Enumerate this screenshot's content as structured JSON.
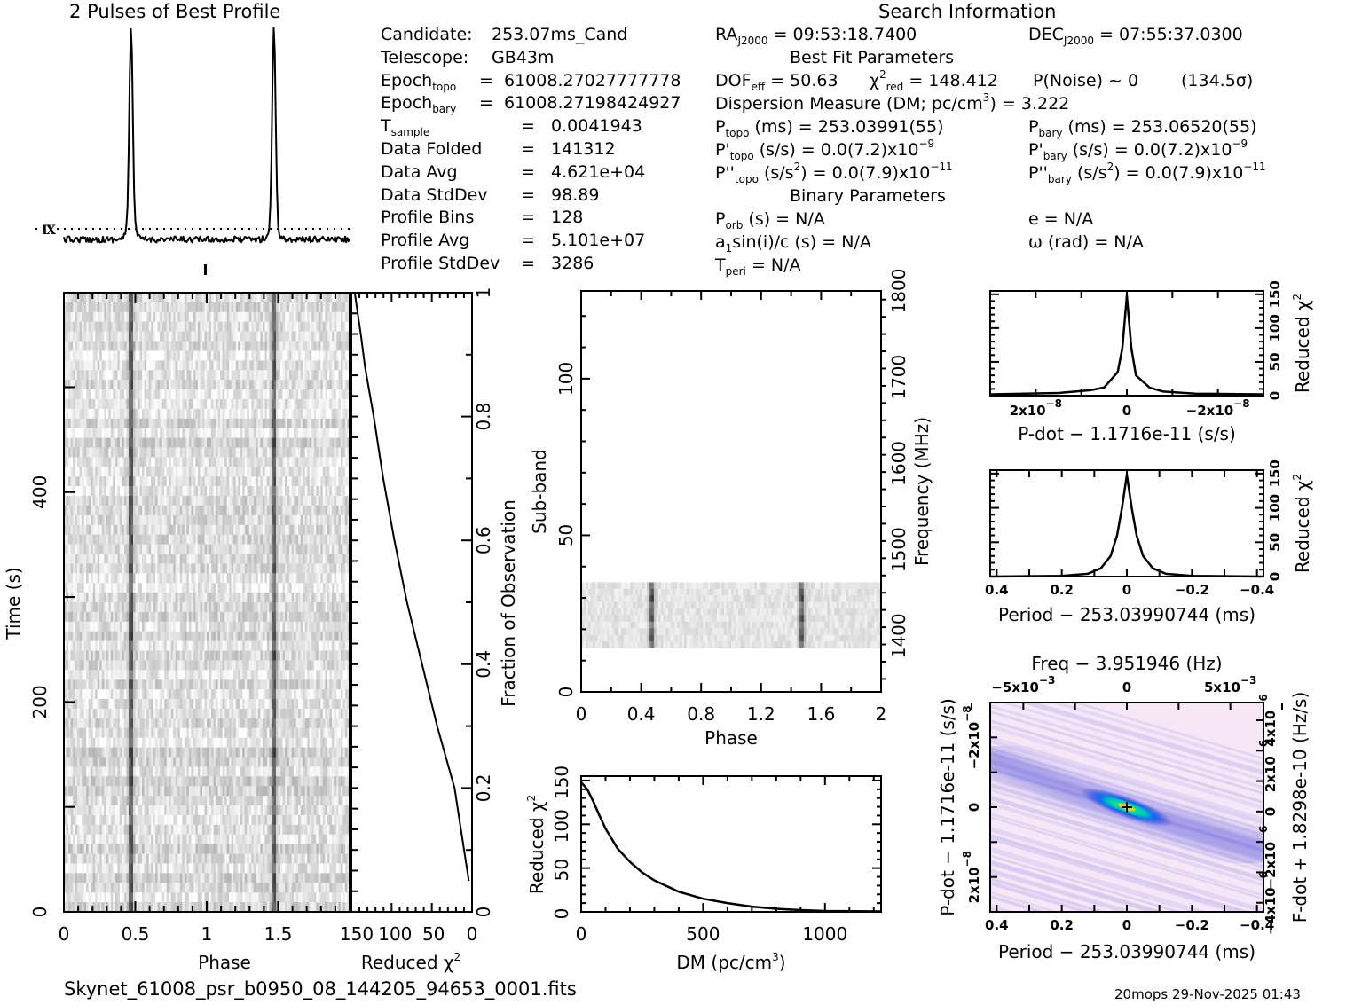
{
  "profile_panel": {
    "title": "2 Pulses of Best Profile"
  },
  "candidate_info": {
    "rows": [
      {
        "label": "Candidate:",
        "sub": "",
        "eq": "",
        "value": "253.07ms_Cand"
      },
      {
        "label": "Telescope:",
        "sub": "",
        "eq": "",
        "value": "GB43m"
      },
      {
        "label": "Epoch",
        "sub": "topo",
        "eq": "=",
        "value": "61008.27027777778"
      },
      {
        "label": "Epoch",
        "sub": "bary",
        "eq": "=",
        "value": "61008.27198424927"
      },
      {
        "label": "T",
        "sub": "sample",
        "eq": "=",
        "value": "0.0041943"
      },
      {
        "label": "Data Folded",
        "sub": "",
        "eq": "=",
        "value": "141312"
      },
      {
        "label": "Data Avg",
        "sub": "",
        "eq": "=",
        "value": "4.621e+04"
      },
      {
        "label": "Data StdDev",
        "sub": "",
        "eq": "=",
        "value": "98.89"
      },
      {
        "label": "Profile Bins",
        "sub": "",
        "eq": "=",
        "value": "128"
      },
      {
        "label": "Profile Avg",
        "sub": "",
        "eq": "=",
        "value": "5.101e+07"
      },
      {
        "label": "Profile StdDev",
        "sub": "",
        "eq": "=",
        "value": "3286"
      }
    ]
  },
  "search_info": {
    "title": "Search Information",
    "ra": {
      "label": "RA",
      "sub": "J2000",
      "value": "= 09:53:18.7400"
    },
    "dec": {
      "label": "DEC",
      "sub": "J2000",
      "value": "= 07:55:37.0300"
    },
    "best_fit_title": "Best Fit Parameters",
    "dof": {
      "label": "DOF",
      "sub": "eff",
      "value": "= 50.63"
    },
    "chi2": {
      "label": "χ",
      "sup": "2",
      "sub": "red",
      "value": "= 148.412"
    },
    "pnoise": "P(Noise) ~ 0",
    "sigma": "(134.5σ)",
    "dm": {
      "label": "Dispersion Measure (DM; pc/cm",
      "sup": "3",
      "value": ") = 3.222"
    },
    "ptopo": {
      "label": "P",
      "sub": "topo",
      "value": "(ms) =  253.03991(55)"
    },
    "pbary": {
      "label": "P",
      "sub": "bary",
      "value": "(ms) =  253.06520(55)"
    },
    "pdtopo": {
      "label": "P'",
      "sub": "topo",
      "value": "(s/s) = 0.0(7.2)x10",
      "exp": "−9"
    },
    "pdbary": {
      "label": "P'",
      "sub": "bary",
      "value": "(s/s) = 0.0(7.2)x10",
      "exp": "−9"
    },
    "pddtopo": {
      "label": "P''",
      "sub": "topo",
      "value": "(s/s",
      "sup": "2",
      "value2": ") = 0.0(7.9)x10",
      "exp": "−11"
    },
    "pddbary": {
      "label": "P''",
      "sub": "bary",
      "value": "(s/s",
      "sup": "2",
      "value2": ") = 0.0(7.9)x10",
      "exp": "−11"
    },
    "binary_title": "Binary Parameters",
    "porb": {
      "label": "P",
      "sub": "orb",
      "value": "(s) = N/A"
    },
    "ecc": "e = N/A",
    "asini": {
      "label": "a",
      "sub": "1",
      "value": "sin(i)/c (s) = N/A"
    },
    "omega": "ω (rad) = N/A",
    "tperi": {
      "label": "T",
      "sub": "peri",
      "value": "= N/A"
    }
  },
  "footer": {
    "filename": "Skynet_61008_psr_b0950_08_144205_94653_0001.fits",
    "stamp": "20mops 29-Nov-2025 01:43"
  },
  "colors": {
    "ink": "#000000",
    "greyscale_bg": "#e8e8e8",
    "ppdot_bg": "#f6e6f6",
    "ppdot_mid": "#7070e0",
    "ppdot_hot": "#00e0a0"
  },
  "chart_data": [
    {
      "name": "pulse-profile",
      "type": "line",
      "title": "2 Pulses of Best Profile",
      "xlim": [
        0,
        2
      ],
      "peaks_phase": [
        0.47,
        1.47
      ],
      "baseline_fraction": 0.12,
      "peak_fraction": 1.0
    },
    {
      "name": "time-phase",
      "type": "heatmap",
      "xlabel": "Phase",
      "ylabel": "Time (s)",
      "xticks": [
        "0",
        "0.5",
        "1",
        "1.5"
      ],
      "yticks": [
        "0",
        "200",
        "400"
      ],
      "xlim": [
        0,
        2
      ],
      "ylim": [
        0,
        590
      ],
      "pulse_phases": [
        0.47,
        1.47
      ]
    },
    {
      "name": "chi2-vs-fraction",
      "type": "line",
      "xlabel": "Reduced χ",
      "xlabel_sup": "2",
      "ylabel": "Fraction of Observation",
      "xticks": [
        "150",
        "100",
        "50",
        "0"
      ],
      "yticks": [
        "0",
        "0.2",
        "0.4",
        "0.6",
        "0.8",
        "1"
      ],
      "xlim": [
        150,
        0
      ],
      "ylim": [
        0,
        1
      ],
      "x": [
        148,
        140,
        135,
        124,
        112,
        98,
        82,
        63,
        44,
        22,
        4
      ],
      "y": [
        1.0,
        0.93,
        0.88,
        0.8,
        0.7,
        0.6,
        0.5,
        0.4,
        0.3,
        0.2,
        0.05
      ]
    },
    {
      "name": "subband-phase",
      "type": "heatmap",
      "xlabel": "Phase",
      "ylabel": "Sub-band",
      "y2label": "Frequency (MHz)",
      "xticks": [
        "0",
        "0.4",
        "0.8",
        "1.2",
        "1.6",
        "2"
      ],
      "yticks": [
        "0",
        "50",
        "100"
      ],
      "y2ticks": [
        "1400",
        "1500",
        "1600",
        "1700",
        "1800"
      ],
      "xlim": [
        0,
        2
      ],
      "ylim": [
        0,
        128
      ],
      "y2lim": [
        1335,
        1800
      ],
      "data_subbands": [
        14,
        35
      ],
      "pulse_phases": [
        0.47,
        1.47
      ]
    },
    {
      "name": "chi2-vs-dm",
      "type": "line",
      "xlabel": "DM (pc/cm",
      "xlabel_sup": "3",
      "xlabel_end": ")",
      "ylabel": "Reduced χ",
      "ylabel_sup": "2",
      "xticks": [
        "0",
        "500",
        "1000"
      ],
      "yticks": [
        "0",
        "50",
        "100",
        "150"
      ],
      "xlim": [
        0,
        1230
      ],
      "ylim": [
        0,
        155
      ],
      "x": [
        0,
        25,
        50,
        75,
        100,
        150,
        200,
        250,
        300,
        400,
        500,
        600,
        700,
        800,
        900,
        1000,
        1230
      ],
      "y": [
        148,
        140,
        126,
        110,
        95,
        72,
        57,
        45,
        36,
        23,
        15,
        10,
        6,
        3.5,
        2,
        1,
        0.5
      ]
    },
    {
      "name": "chi2-vs-pdot",
      "type": "line",
      "xlabel": "P-dot − 1.1716e-11 (s/s)",
      "ylabel": "Reduced χ",
      "ylabel_sup": "2",
      "xticks": [
        "2x10",
        "0",
        "−2x10"
      ],
      "xtick_exps": [
        "−8",
        "",
        "−8"
      ],
      "yticks": [
        "0",
        "50",
        "100",
        "150"
      ],
      "xlim": [
        3e-08,
        -3e-08
      ],
      "ylim": [
        0,
        155
      ],
      "x": [
        3e-08,
        1.5e-08,
        8e-09,
        5e-09,
        2e-09,
        1e-09,
        0,
        -1e-09,
        -2e-09,
        -5e-09,
        -8e-09,
        -1.5e-08,
        -3e-08
      ],
      "y": [
        2,
        4,
        8,
        12,
        35,
        70,
        148,
        70,
        30,
        12,
        6,
        3,
        2
      ]
    },
    {
      "name": "chi2-vs-period",
      "type": "line",
      "xlabel": "Period − 253.03990744 (ms)",
      "ylabel": "Reduced χ",
      "ylabel_sup": "2",
      "xticks": [
        "0.4",
        "0.2",
        "0",
        "−0.2",
        "−0.4"
      ],
      "yticks": [
        "0",
        "50",
        "100",
        "150"
      ],
      "xlim": [
        0.42,
        -0.42
      ],
      "ylim": [
        0,
        155
      ],
      "x": [
        0.42,
        0.2,
        0.12,
        0.08,
        0.05,
        0.03,
        0.015,
        0,
        -0.015,
        -0.03,
        -0.05,
        -0.08,
        -0.12,
        -0.2,
        -0.42
      ],
      "y": [
        0,
        1,
        4,
        12,
        30,
        60,
        100,
        148,
        100,
        60,
        30,
        12,
        4,
        1,
        0
      ]
    },
    {
      "name": "period-pdot-plane",
      "type": "heatmap",
      "title": "Freq − 3.951946 (Hz)",
      "xlabel": "Period − 253.03990744 (ms)",
      "ylabel": "P-dot − 1.1716e-11 (s/s)",
      "y2label": "F-dot + 1.8298e-10 (Hz/s)",
      "xticks": [
        "0.4",
        "0.2",
        "0",
        "−0.2",
        "−0.4"
      ],
      "x2ticks": [
        "−5x10",
        "0",
        "5x10"
      ],
      "x2tick_exps": [
        "−3",
        "",
        "−3"
      ],
      "yticks": [
        "−2x10",
        "0",
        "2x10"
      ],
      "ytick_exps": [
        "−8",
        "",
        "−8"
      ],
      "y2ticks": [
        "4x10",
        "2x10",
        "0",
        "−2x10",
        "−4x10"
      ],
      "y2tick_exps": [
        "−6",
        "−6",
        "",
        "−6",
        "−6"
      ],
      "xlim": [
        0.42,
        -0.42
      ],
      "ylim": [
        -3e-08,
        3e-08
      ],
      "best_point": [
        0,
        0
      ]
    }
  ]
}
